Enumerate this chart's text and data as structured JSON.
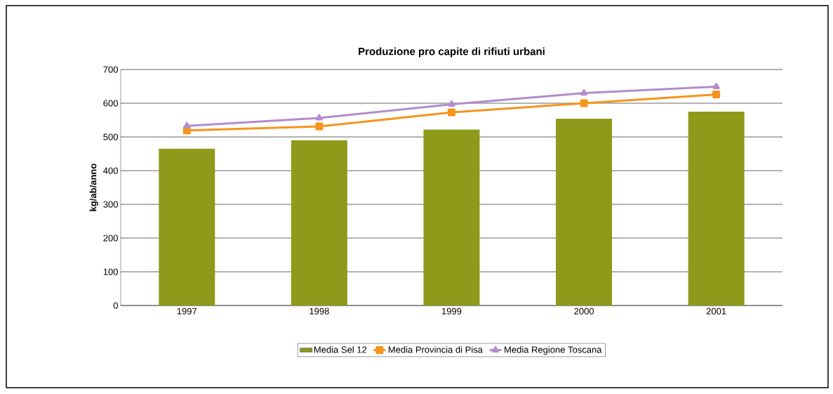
{
  "chart_data": {
    "type": "bar",
    "title": "Produzione pro capite di rifiuti urbani",
    "ylabel": "kg/ab/anno",
    "categories": [
      "1997",
      "1998",
      "1999",
      "2000",
      "2001"
    ],
    "series": [
      {
        "name": "Media Sel 12",
        "color": "#8f9a1a",
        "values": [
          465,
          490,
          522,
          554,
          575
        ]
      },
      {
        "name": "Media Provincia di Pisa",
        "type": "line",
        "color": "#f7941d",
        "marker": "square",
        "values": [
          519,
          531,
          573,
          600,
          626
        ]
      },
      {
        "name": "Media Regione Toscana",
        "type": "line",
        "color": "#b28ccc",
        "marker": "triangle",
        "values": [
          533,
          556,
          597,
          630,
          649
        ]
      }
    ],
    "ylim": [
      0,
      700
    ],
    "yticks": [
      0,
      100,
      200,
      300,
      400,
      500,
      600,
      700
    ],
    "grid": "y",
    "legend": "bottom"
  }
}
